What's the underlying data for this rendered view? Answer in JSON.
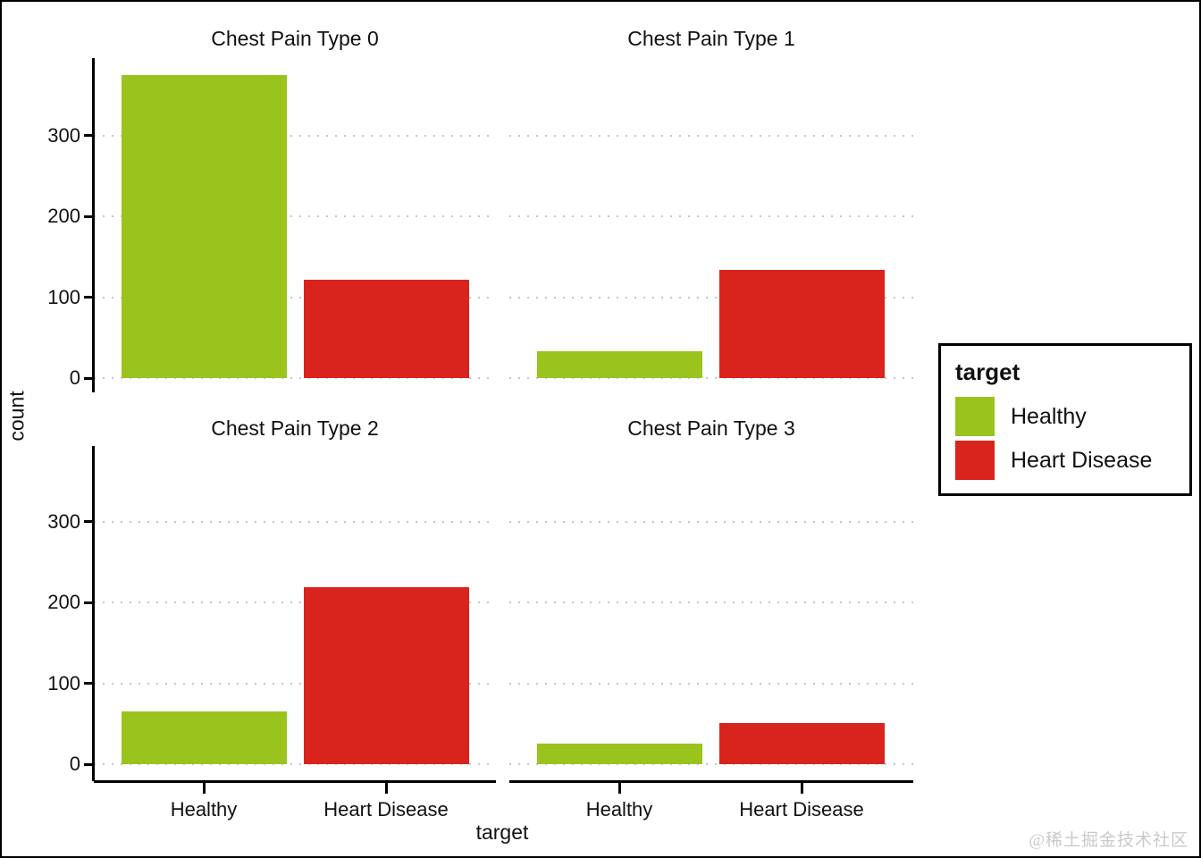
{
  "chart_data": {
    "type": "bar",
    "title": "",
    "facet_variable": "Chest Pain Type",
    "facets": [
      {
        "title": "Chest Pain Type 0",
        "values": [
          375,
          122
        ]
      },
      {
        "title": "Chest Pain Type 1",
        "values": [
          33,
          134
        ]
      },
      {
        "title": "Chest Pain Type 2",
        "values": [
          65,
          219
        ]
      },
      {
        "title": "Chest Pain Type 3",
        "values": [
          26,
          51
        ]
      }
    ],
    "categories": [
      "Healthy",
      "Heart Disease"
    ],
    "series": [
      {
        "name": "Healthy",
        "color": "#9BC31E"
      },
      {
        "name": "Heart Disease",
        "color": "#D8241C"
      }
    ],
    "xlabel": "target",
    "ylabel": "count",
    "yticks": [
      0,
      100,
      200,
      300
    ],
    "ylim": [
      0,
      394
    ],
    "grid": "dotted-horizontal",
    "legend": {
      "title": "target",
      "position": "right"
    }
  },
  "watermark": "@稀土掘金技术社区"
}
